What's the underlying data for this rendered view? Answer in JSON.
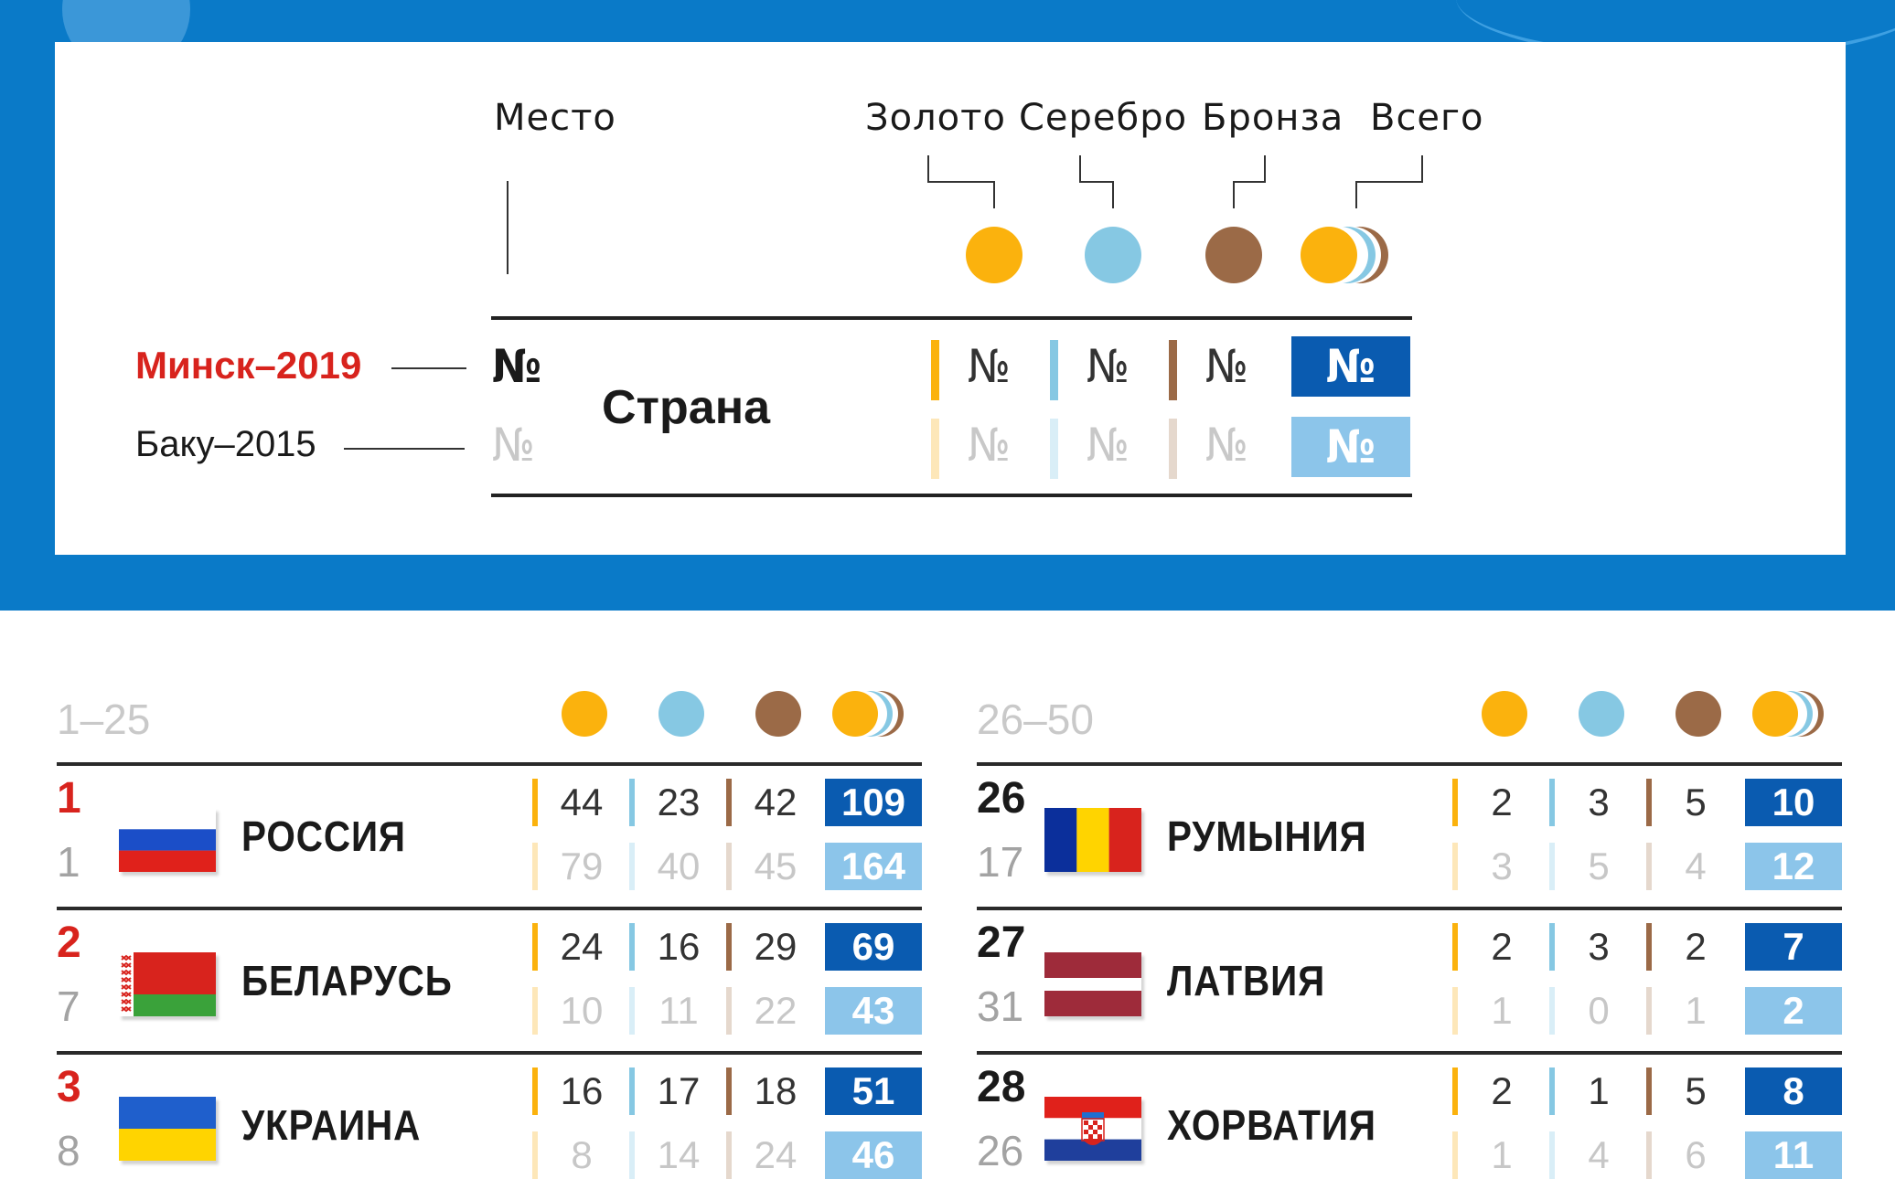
{
  "legend": {
    "place_label": "Место",
    "gold_label": "Золото",
    "silver_label": "Серебро",
    "bronze_label": "Бронза",
    "total_label": "Всего",
    "minsk_label": "Минск–2019",
    "baku_label": "Баку–2015",
    "country_label": "Страна",
    "num_symbol": "№"
  },
  "colors": {
    "band": "#0a7ac8",
    "gold": "#fbb20d",
    "silver": "#86c8e3",
    "bronze": "#9b6a47",
    "total_new": "#0a5bb0",
    "total_old": "#8cc5ea",
    "minsk_red": "#d8231d"
  },
  "tables": [
    {
      "range": "1–25",
      "rows": [
        {
          "rank_2019": "1",
          "rank_2015": "1",
          "country": "РОССИЯ",
          "flag": "russia-flag",
          "gold_2019": "44",
          "silver_2019": "23",
          "bronze_2019": "42",
          "total_2019": "109",
          "gold_2015": "79",
          "silver_2015": "40",
          "bronze_2015": "45",
          "total_2015": "164"
        },
        {
          "rank_2019": "2",
          "rank_2015": "7",
          "country": "БЕЛАРУСЬ",
          "flag": "belarus-flag",
          "gold_2019": "24",
          "silver_2019": "16",
          "bronze_2019": "29",
          "total_2019": "69",
          "gold_2015": "10",
          "silver_2015": "11",
          "bronze_2015": "22",
          "total_2015": "43"
        },
        {
          "rank_2019": "3",
          "rank_2015": "8",
          "country": "УКРАИНА",
          "flag": "ukraine-flag",
          "gold_2019": "16",
          "silver_2019": "17",
          "bronze_2019": "18",
          "total_2019": "51",
          "gold_2015": "8",
          "silver_2015": "14",
          "bronze_2015": "24",
          "total_2015": "46"
        }
      ]
    },
    {
      "range": "26–50",
      "rows": [
        {
          "rank_2019": "26",
          "rank_2015": "17",
          "country": "РУМЫНИЯ",
          "flag": "romania-flag",
          "gold_2019": "2",
          "silver_2019": "3",
          "bronze_2019": "5",
          "total_2019": "10",
          "gold_2015": "3",
          "silver_2015": "5",
          "bronze_2015": "4",
          "total_2015": "12"
        },
        {
          "rank_2019": "27",
          "rank_2015": "31",
          "country": "ЛАТВИЯ",
          "flag": "latvia-flag",
          "gold_2019": "2",
          "silver_2019": "3",
          "bronze_2019": "2",
          "total_2019": "7",
          "gold_2015": "1",
          "silver_2015": "0",
          "bronze_2015": "1",
          "total_2015": "2"
        },
        {
          "rank_2019": "28",
          "rank_2015": "26",
          "country": "ХОРВАТИЯ",
          "flag": "croatia-flag",
          "gold_2019": "2",
          "silver_2019": "1",
          "bronze_2019": "5",
          "total_2019": "8",
          "gold_2015": "1",
          "silver_2015": "4",
          "bronze_2015": "6",
          "total_2015": "11"
        }
      ]
    }
  ]
}
